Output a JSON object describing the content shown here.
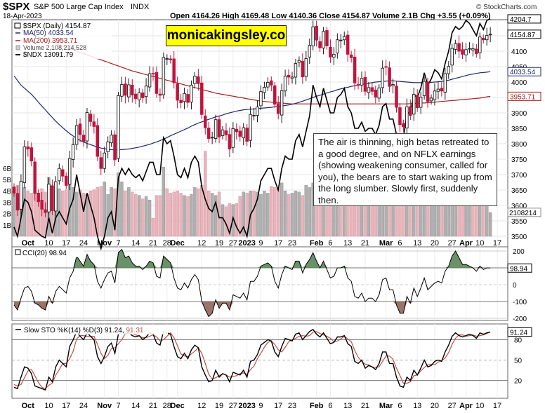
{
  "header": {
    "symbol": "$SPX",
    "name": "S&P 500 Large Cap Index",
    "exchange": "INDX",
    "date": "18-Apr-2023",
    "ohlc": "Open 4164.26  High 4169.48  Low 4140.36  Close 4154.87  Volume 2.1B  Chg +3.55 (+0.09%)",
    "credit": "© StockCharts.com"
  },
  "legend": {
    "l1": "$SPX (Daily) 4154.87",
    "l2": "MA(50) 4033.54",
    "l3": "MA(200) 3953.71",
    "l4": "Volume 2,108,214,528",
    "l5": "$NDX 13091.79"
  },
  "watermark": "monicakingsley.co",
  "annotation": "The air is thinning, high betas retreated to a good degree, and on NFLX earnings (showing weakening consumer, called for you), the bears are to start waking up from the long slumber. Slowly first, suddenly then.",
  "colors": {
    "up": "#1a1a1a",
    "down": "#c0143c",
    "ma50": "#1f2a6e",
    "ma200": "#a32020",
    "vol_up": "#b0b0b0",
    "vol_down": "#e8b4bc",
    "cci_pos": "#4f7f4f",
    "cci_neg": "#8b5a4e",
    "stoch_k": "#000000",
    "stoch_d": "#c0504d"
  },
  "xlabels": [
    {
      "i": 4,
      "t": "Oct",
      "bold": true
    },
    {
      "i": 10,
      "t": "10"
    },
    {
      "i": 15,
      "t": "17"
    },
    {
      "i": 20,
      "t": "24"
    },
    {
      "i": 26,
      "t": "Nov",
      "bold": true
    },
    {
      "i": 30,
      "t": "7"
    },
    {
      "i": 35,
      "t": "14"
    },
    {
      "i": 40,
      "t": "21"
    },
    {
      "i": 44,
      "t": "28"
    },
    {
      "i": 47,
      "t": "Dec",
      "bold": true
    },
    {
      "i": 54,
      "t": "12"
    },
    {
      "i": 59,
      "t": "19"
    },
    {
      "i": 63,
      "t": "27"
    },
    {
      "i": 67,
      "t": "2023",
      "bold": true
    },
    {
      "i": 71,
      "t": "9"
    },
    {
      "i": 76,
      "t": "17"
    },
    {
      "i": 80,
      "t": "23"
    },
    {
      "i": 87,
      "t": "Feb",
      "bold": true
    },
    {
      "i": 91,
      "t": "6"
    },
    {
      "i": 96,
      "t": "13"
    },
    {
      "i": 101,
      "t": "21"
    },
    {
      "i": 107,
      "t": "Mar",
      "bold": true
    },
    {
      "i": 111,
      "t": "6"
    },
    {
      "i": 116,
      "t": "13"
    },
    {
      "i": 121,
      "t": "20"
    },
    {
      "i": 126,
      "t": "27"
    },
    {
      "i": 130,
      "t": "Apr",
      "bold": true
    },
    {
      "i": 134,
      "t": "10"
    },
    {
      "i": 139,
      "t": "17"
    }
  ],
  "price_axis": {
    "ticks": [
      3500,
      3550,
      3600,
      3650,
      3700,
      3750,
      3800,
      3850,
      3900,
      3950,
      4000,
      4050,
      4100,
      4150,
      4200
    ]
  },
  "price_tags": {
    "ma50": "4033.54",
    "ma200": "3953.71",
    "close": "4154.87",
    "ndx": "4204.7",
    "vol": "2108214"
  },
  "vol_axis": {
    "ticks": [
      "1B",
      "2B",
      "3B",
      "4B",
      "5B",
      "6B"
    ]
  },
  "cci": {
    "title": "CCI(20) 98.94",
    "ticks": [
      200,
      100,
      0,
      -100,
      -200
    ],
    "value_tag": "98.94"
  },
  "stoch": {
    "title": "Slow STO %K(14) %D(3) 91.24, 91.31",
    "k_label": "Slow STO %K(14) %D(3) 91.24,",
    "d_label": "91.31",
    "ticks": [
      80,
      50,
      20
    ],
    "value_tag": "91.24"
  },
  "chart_data": {
    "type": "candlestick",
    "dates": [
      "2022-09-29",
      "2022-09-30",
      "2022-10-03",
      "2022-10-04",
      "2022-10-05",
      "2022-10-06",
      "2022-10-07",
      "2022-10-10",
      "2022-10-11",
      "2022-10-12",
      "2022-10-13",
      "2022-10-14",
      "2022-10-17",
      "2022-10-18",
      "2022-10-19",
      "2022-10-20",
      "2022-10-21",
      "2022-10-24",
      "2022-10-25",
      "2022-10-26",
      "2022-10-27",
      "2022-10-28",
      "2022-10-31",
      "2022-11-01",
      "2022-11-02",
      "2022-11-03",
      "2022-11-04",
      "2022-11-07",
      "2022-11-08",
      "2022-11-09",
      "2022-11-10",
      "2022-11-11",
      "2022-11-14",
      "2022-11-15",
      "2022-11-16",
      "2022-11-17",
      "2022-11-18",
      "2022-11-21",
      "2022-11-22",
      "2022-11-23",
      "2022-11-25",
      "2022-11-28",
      "2022-11-29",
      "2022-11-30",
      "2022-12-01",
      "2022-12-02",
      "2022-12-05",
      "2022-12-06",
      "2022-12-07",
      "2022-12-08",
      "2022-12-09",
      "2022-12-12",
      "2022-12-13",
      "2022-12-14",
      "2022-12-15",
      "2022-12-16",
      "2022-12-19",
      "2022-12-20",
      "2022-12-21",
      "2022-12-22",
      "2022-12-23",
      "2022-12-27",
      "2022-12-28",
      "2022-12-29",
      "2022-12-30",
      "2023-01-03",
      "2023-01-04",
      "2023-01-05",
      "2023-01-06",
      "2023-01-09",
      "2023-01-10",
      "2023-01-11",
      "2023-01-12",
      "2023-01-13",
      "2023-01-17",
      "2023-01-18",
      "2023-01-19",
      "2023-01-20",
      "2023-01-23",
      "2023-01-24",
      "2023-01-25",
      "2023-01-26",
      "2023-01-27",
      "2023-01-30",
      "2023-01-31",
      "2023-02-01",
      "2023-02-02",
      "2023-02-03",
      "2023-02-06",
      "2023-02-07",
      "2023-02-08",
      "2023-02-09",
      "2023-02-10",
      "2023-02-13",
      "2023-02-14",
      "2023-02-15",
      "2023-02-16",
      "2023-02-17",
      "2023-02-21",
      "2023-02-22",
      "2023-02-23",
      "2023-02-24",
      "2023-02-27",
      "2023-02-28",
      "2023-03-01",
      "2023-03-02",
      "2023-03-03",
      "2023-03-06",
      "2023-03-07",
      "2023-03-08",
      "2023-03-09",
      "2023-03-10",
      "2023-03-13",
      "2023-03-14",
      "2023-03-15",
      "2023-03-16",
      "2023-03-17",
      "2023-03-20",
      "2023-03-21",
      "2023-03-22",
      "2023-03-23",
      "2023-03-24",
      "2023-03-27",
      "2023-03-28",
      "2023-03-29",
      "2023-03-30",
      "2023-03-31",
      "2023-04-03",
      "2023-04-04",
      "2023-04-05",
      "2023-04-06",
      "2023-04-10",
      "2023-04-11",
      "2023-04-12",
      "2023-04-13",
      "2023-04-14",
      "2023-04-17",
      "2023-04-18"
    ],
    "spx_close": [
      3640,
      3585,
      3678,
      3790,
      3783,
      3744,
      3639,
      3612,
      3588,
      3577,
      3669,
      3583,
      3677,
      3720,
      3695,
      3665,
      3752,
      3797,
      3859,
      3830,
      3807,
      3901,
      3872,
      3856,
      3759,
      3720,
      3770,
      3806,
      3828,
      3748,
      3956,
      3992,
      3957,
      3991,
      3958,
      3946,
      3965,
      3949,
      3987,
      4027,
      4026,
      3963,
      3957,
      4080,
      4076,
      4072,
      3998,
      3941,
      3933,
      3963,
      3934,
      3990,
      4019,
      3995,
      3895,
      3852,
      3817,
      3821,
      3878,
      3822,
      3845,
      3829,
      3783,
      3849,
      3839,
      3824,
      3852,
      3808,
      3895,
      3892,
      3919,
      3969,
      3983,
      3999,
      3990,
      3928,
      3898,
      3972,
      4019,
      4016,
      4016,
      4060,
      4070,
      4017,
      4076,
      4119,
      4179,
      4136,
      4111,
      4164,
      4117,
      4081,
      4090,
      4137,
      4136,
      4147,
      4090,
      4079,
      3997,
      3991,
      4012,
      3970,
      3982,
      3970,
      3951,
      3981,
      4045,
      4048,
      3986,
      3992,
      3918,
      3862,
      3855,
      3920,
      3892,
      3960,
      3917,
      3951,
      4002,
      3937,
      3948,
      3971,
      3977,
      3971,
      4027,
      4051,
      4109,
      4124,
      4100,
      4090,
      4105,
      4109,
      4108,
      4092,
      4146,
      4137,
      4151,
      4155
    ],
    "spx_ohlc_note": "OHLC bodies derived from consecutive closes; high/low approximated with small wicks",
    "ndx_normalized_on_price_axis": [
      3530,
      3500,
      3560,
      3620,
      3610,
      3580,
      3520,
      3510,
      3500,
      3495,
      3560,
      3510,
      3560,
      3580,
      3560,
      3540,
      3590,
      3620,
      3700,
      3640,
      3580,
      3640,
      3600,
      3560,
      3500,
      3460,
      3500,
      3560,
      3580,
      3520,
      3690,
      3720,
      3700,
      3720,
      3700,
      3690,
      3700,
      3680,
      3710,
      3740,
      3740,
      3700,
      3700,
      3820,
      3800,
      3810,
      3760,
      3700,
      3690,
      3720,
      3690,
      3740,
      3760,
      3740,
      3660,
      3620,
      3590,
      3580,
      3610,
      3560,
      3560,
      3540,
      3510,
      3560,
      3530,
      3510,
      3530,
      3500,
      3570,
      3590,
      3620,
      3680,
      3700,
      3720,
      3720,
      3680,
      3650,
      3720,
      3760,
      3750,
      3750,
      3810,
      3830,
      3790,
      3840,
      3890,
      3990,
      3950,
      3920,
      3980,
      3940,
      3900,
      3900,
      3950,
      3960,
      3980,
      3920,
      3900,
      3850,
      3850,
      3870,
      3840,
      3850,
      3850,
      3830,
      3860,
      3920,
      3930,
      3880,
      3880,
      3830,
      3800,
      3820,
      3900,
      3900,
      3960,
      3950,
      3980,
      4030,
      3990,
      4010,
      4040,
      4030,
      4010,
      4060,
      4100,
      4160,
      4180,
      4170,
      4180,
      4200,
      4190,
      4170,
      4150,
      4190,
      4170,
      4200,
      4204.7
    ],
    "ma50": [
      4020,
      4005,
      3990,
      3980,
      3970,
      3960,
      3948,
      3935,
      3922,
      3910,
      3897,
      3885,
      3873,
      3862,
      3852,
      3842,
      3833,
      3825,
      3818,
      3811,
      3806,
      3801,
      3797,
      3793,
      3789,
      3786,
      3784,
      3782,
      3781,
      3780,
      3780,
      3781,
      3782,
      3783,
      3785,
      3787,
      3789,
      3792,
      3795,
      3798,
      3802,
      3806,
      3810,
      3815,
      3820,
      3826,
      3831,
      3836,
      3841,
      3846,
      3851,
      3857,
      3862,
      3867,
      3871,
      3875,
      3879,
      3883,
      3887,
      3890,
      3893,
      3897,
      3900,
      3903,
      3906,
      3908,
      3910,
      3911,
      3912,
      3913,
      3914,
      3915,
      3916,
      3917,
      3918,
      3920,
      3921,
      3922,
      3924,
      3926,
      3928,
      3931,
      3934,
      3938,
      3942,
      3946,
      3950,
      3954,
      3957,
      3961,
      3965,
      3968,
      3971,
      3975,
      3978,
      3981,
      3983,
      3986,
      3988,
      3990,
      3992,
      3994,
      3996,
      3998,
      4000,
      4001,
      4002,
      4003,
      4004,
      4004,
      4003,
      4002,
      4001,
      4000,
      3999,
      3998,
      3998,
      3998,
      3998,
      3999,
      3999,
      4000,
      4001,
      4002,
      4004,
      4006,
      4009,
      4012,
      4015,
      4018,
      4021,
      4024,
      4026,
      4028,
      4030,
      4031,
      4032,
      4033.54
    ],
    "ma200": [
      4180,
      4175,
      4170,
      4165,
      4160,
      4155,
      4150,
      4146,
      4141,
      4137,
      4132,
      4128,
      4124,
      4120,
      4116,
      4112,
      4108,
      4104,
      4100,
      4096,
      4092,
      4088,
      4084,
      4080,
      4076,
      4072,
      4068,
      4064,
      4060,
      4056,
      4052,
      4048,
      4044,
      4040,
      4036,
      4033,
      4030,
      4027,
      4024,
      4021,
      4018,
      4015,
      4012,
      4009,
      4006,
      4003,
      4000,
      3997,
      3994,
      3991,
      3988,
      3985,
      3982,
      3979,
      3976,
      3973,
      3970,
      3967,
      3964,
      3962,
      3960,
      3958,
      3956,
      3954,
      3952,
      3950,
      3948,
      3946,
      3944,
      3942,
      3940,
      3938,
      3937,
      3936,
      3935,
      3934,
      3933,
      3932,
      3931,
      3930,
      3929,
      3929,
      3929,
      3929,
      3929,
      3929,
      3929,
      3929,
      3929,
      3929,
      3929,
      3929,
      3929,
      3929,
      3929,
      3929,
      3929,
      3929,
      3929,
      3929,
      3929,
      3929,
      3929,
      3929,
      3929,
      3929,
      3929,
      3929,
      3929,
      3929,
      3929,
      3929,
      3929,
      3929,
      3930,
      3930,
      3931,
      3932,
      3932,
      3933,
      3934,
      3935,
      3936,
      3937,
      3938,
      3939,
      3940,
      3941,
      3942,
      3943,
      3944,
      3945,
      3946,
      3947,
      3948,
      3950,
      3952,
      3953.71
    ],
    "volume_billions": [
      4.2,
      4.5,
      3.9,
      4.3,
      4.0,
      3.8,
      4.1,
      3.6,
      4.2,
      3.9,
      5.2,
      4.4,
      3.9,
      4.2,
      4.0,
      4.1,
      4.6,
      4.3,
      3.9,
      4.1,
      3.8,
      3.7,
      4.0,
      4.1,
      4.3,
      4.4,
      4.8,
      3.7,
      4.3,
      4.2,
      5.6,
      4.8,
      4.0,
      4.3,
      3.9,
      3.7,
      3.6,
      3.3,
      3.5,
      3.2,
      1.6,
      3.6,
      3.6,
      6.1,
      4.2,
      3.8,
      3.9,
      4.0,
      3.8,
      3.6,
      3.5,
      3.7,
      4.3,
      4.2,
      4.5,
      7.5,
      4.0,
      3.8,
      3.6,
      3.9,
      2.8,
      2.6,
      2.9,
      2.8,
      2.9,
      3.5,
      3.9,
      3.8,
      4.0,
      4.0,
      3.9,
      3.7,
      4.0,
      3.8,
      4.4,
      4.3,
      4.2,
      4.7,
      4.0,
      3.7,
      3.8,
      4.0,
      3.9,
      3.6,
      4.5,
      4.3,
      4.7,
      4.5,
      3.9,
      4.2,
      4.0,
      4.2,
      4.0,
      3.8,
      3.9,
      4.0,
      4.1,
      3.7,
      3.9,
      3.8,
      3.9,
      3.8,
      3.9,
      4.4,
      4.2,
      4.0,
      3.9,
      3.8,
      4.0,
      4.1,
      4.5,
      5.0,
      5.5,
      5.1,
      5.4,
      5.1,
      8.9,
      4.7,
      4.0,
      4.6,
      3.9,
      4.0,
      3.7,
      3.7,
      3.8,
      3.6,
      4.2,
      4.1,
      4.0,
      3.9,
      3.6,
      3.4,
      3.5,
      3.6,
      3.3,
      3.4,
      3.2,
      2.1
    ],
    "cci": [
      -120,
      -150,
      -80,
      -20,
      -10,
      -40,
      -110,
      -120,
      -140,
      -150,
      -70,
      -110,
      -40,
      -10,
      -30,
      -50,
      40,
      80,
      170,
      140,
      110,
      180,
      140,
      120,
      20,
      -20,
      30,
      70,
      80,
      10,
      190,
      210,
      160,
      170,
      130,
      110,
      110,
      90,
      110,
      140,
      130,
      50,
      40,
      170,
      150,
      130,
      40,
      -20,
      -30,
      10,
      -20,
      30,
      60,
      30,
      -100,
      -150,
      -190,
      -170,
      -90,
      -140,
      -110,
      -110,
      -150,
      -60,
      -70,
      -80,
      -50,
      -90,
      20,
      20,
      50,
      110,
      120,
      130,
      110,
      20,
      -20,
      60,
      110,
      100,
      90,
      140,
      140,
      70,
      120,
      150,
      190,
      140,
      100,
      140,
      90,
      40,
      50,
      100,
      100,
      110,
      40,
      20,
      -70,
      -80,
      -50,
      -100,
      -80,
      -80,
      -100,
      -60,
      30,
      40,
      -30,
      -30,
      -120,
      -170,
      -170,
      -70,
      -110,
      -20,
      -70,
      -20,
      40,
      -30,
      -10,
      10,
      20,
      10,
      80,
      110,
      170,
      200,
      160,
      120,
      120,
      110,
      100,
      80,
      110,
      90,
      100,
      98.94
    ],
    "stoch_k": [
      10,
      8,
      25,
      40,
      38,
      30,
      12,
      10,
      8,
      6,
      25,
      18,
      40,
      50,
      45,
      40,
      70,
      80,
      92,
      85,
      80,
      90,
      85,
      80,
      55,
      45,
      55,
      70,
      75,
      60,
      88,
      92,
      88,
      90,
      86,
      84,
      86,
      80,
      84,
      90,
      88,
      75,
      72,
      92,
      90,
      88,
      70,
      55,
      52,
      60,
      52,
      65,
      72,
      68,
      40,
      28,
      18,
      20,
      35,
      25,
      30,
      28,
      18,
      32,
      30,
      28,
      35,
      25,
      48,
      50,
      58,
      72,
      76,
      80,
      78,
      62,
      55,
      70,
      82,
      80,
      78,
      88,
      90,
      80,
      86,
      92,
      95,
      88,
      84,
      90,
      82,
      74,
      76,
      84,
      84,
      86,
      74,
      70,
      48,
      45,
      50,
      38,
      42,
      40,
      36,
      45,
      62,
      62,
      45,
      45,
      25,
      12,
      10,
      25,
      20,
      35,
      28,
      38,
      50,
      40,
      42,
      48,
      50,
      48,
      62,
      72,
      85,
      90,
      86,
      84,
      86,
      88,
      86,
      82,
      90,
      88,
      90,
      91.24
    ],
    "stoch_d": [
      14,
      12,
      14,
      24,
      34,
      36,
      27,
      17,
      10,
      8,
      13,
      16,
      28,
      36,
      45,
      45,
      52,
      63,
      81,
      86,
      86,
      85,
      85,
      85,
      73,
      60,
      52,
      57,
      67,
      68,
      74,
      80,
      89,
      90,
      88,
      87,
      85,
      83,
      83,
      85,
      87,
      84,
      78,
      80,
      85,
      90,
      83,
      71,
      59,
      56,
      55,
      59,
      63,
      68,
      60,
      45,
      29,
      22,
      24,
      27,
      30,
      28,
      25,
      26,
      27,
      30,
      31,
      29,
      36,
      41,
      52,
      60,
      69,
      76,
      78,
      73,
      65,
      62,
      69,
      77,
      80,
      82,
      85,
      86,
      85,
      86,
      91,
      92,
      89,
      87,
      85,
      82,
      77,
      78,
      81,
      85,
      81,
      77,
      64,
      54,
      48,
      44,
      43,
      40,
      39,
      40,
      48,
      56,
      56,
      51,
      38,
      27,
      16,
      16,
      18,
      27,
      28,
      34,
      39,
      43,
      44,
      43,
      47,
      49,
      53,
      61,
      73,
      82,
      87,
      87,
      85,
      86,
      87,
      85,
      86,
      87,
      89,
      91.31
    ]
  }
}
